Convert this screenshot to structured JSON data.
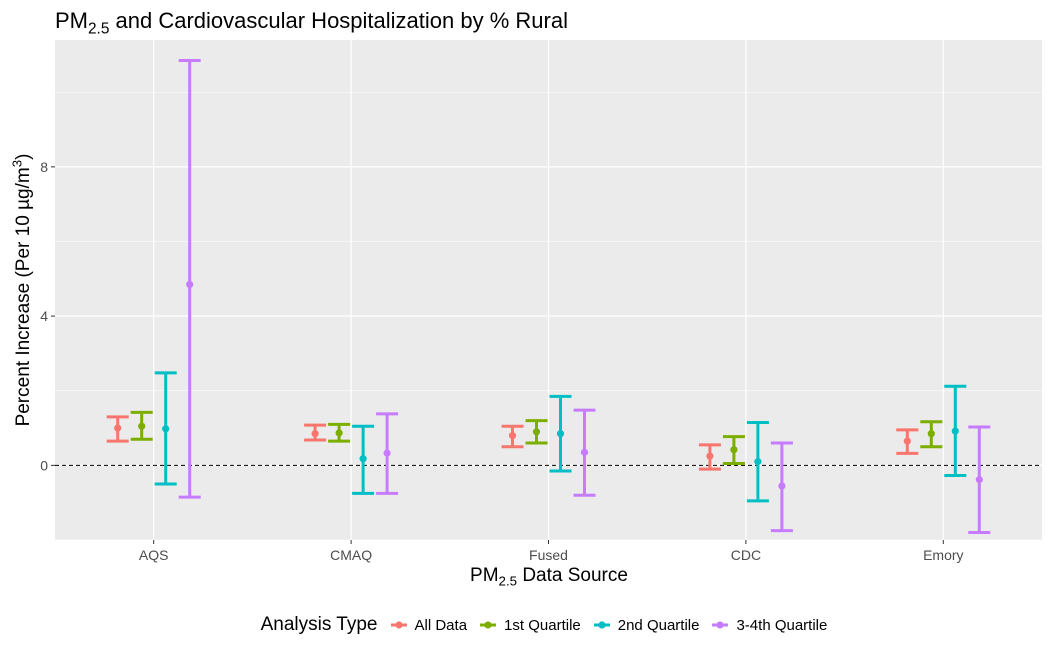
{
  "chart_data": {
    "type": "errorbar",
    "title": {
      "pre": "PM",
      "sub": "2.5",
      "post": " and Cardiovascular Hospitalization by % Rural"
    },
    "xlabel": {
      "pre": "PM",
      "sub": "2.5",
      "post": " Data Source"
    },
    "ylabel": {
      "pre": "Percent Increase (Per 10 µg/m",
      "sup": "3",
      "post": ")"
    },
    "categories": [
      "AQS",
      "CMAQ",
      "Fused",
      "CDC",
      "Emory"
    ],
    "y_ticks": [
      0,
      4,
      8
    ],
    "ylim": [
      -2.0,
      11.4
    ],
    "reference_line": 0,
    "grid": true,
    "legend_title": "Analysis Type",
    "legend_position": "bottom",
    "series": [
      {
        "name": "All Data",
        "color": "#F8766D",
        "estimate": [
          1.0,
          0.85,
          0.8,
          0.25,
          0.65
        ],
        "lower": [
          0.65,
          0.68,
          0.5,
          -0.1,
          0.32
        ],
        "upper": [
          1.3,
          1.08,
          1.05,
          0.55,
          0.95
        ]
      },
      {
        "name": "1st Quartile",
        "color": "#7CAE00",
        "estimate": [
          1.05,
          0.87,
          0.9,
          0.42,
          0.85
        ],
        "lower": [
          0.7,
          0.65,
          0.6,
          0.05,
          0.5
        ],
        "upper": [
          1.42,
          1.1,
          1.2,
          0.77,
          1.17
        ]
      },
      {
        "name": "2nd Quartile",
        "color": "#00BFC4",
        "estimate": [
          0.98,
          0.18,
          0.85,
          0.1,
          0.92
        ],
        "lower": [
          -0.5,
          -0.75,
          -0.15,
          -0.95,
          -0.27
        ],
        "upper": [
          2.48,
          1.05,
          1.85,
          1.15,
          2.12
        ]
      },
      {
        "name": "3-4th Quartile",
        "color": "#C77CFF",
        "estimate": [
          4.85,
          0.33,
          0.35,
          -0.55,
          -0.38
        ],
        "lower": [
          -0.85,
          -0.75,
          -0.8,
          -1.75,
          -1.8
        ],
        "upper": [
          10.85,
          1.38,
          1.48,
          0.6,
          1.03
        ]
      }
    ]
  }
}
